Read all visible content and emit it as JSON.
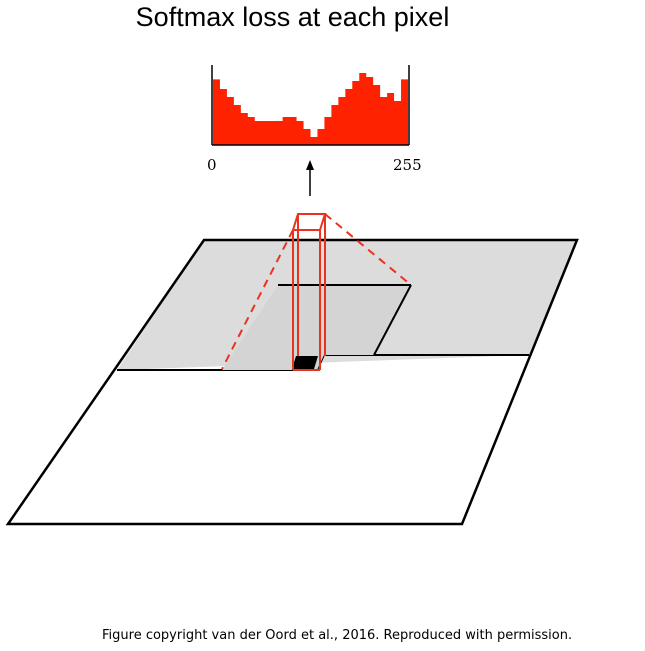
{
  "title": "Softmax loss at each pixel",
  "histogram": {
    "axis_min_label": "0",
    "axis_max_label": "255",
    "bar_color": "#ff2200",
    "relative_heights": [
      0.82,
      0.7,
      0.6,
      0.5,
      0.4,
      0.35,
      0.3,
      0.3,
      0.3,
      0.3,
      0.35,
      0.35,
      0.3,
      0.2,
      0.1,
      0.2,
      0.35,
      0.5,
      0.6,
      0.7,
      0.8,
      0.9,
      0.85,
      0.75,
      0.6,
      0.65,
      0.55,
      0.82
    ]
  },
  "colors": {
    "receptive_field": "#e8331e",
    "shaded_region": "#dcdcdc",
    "outline": "#000000",
    "current_pixel": "#000000"
  },
  "caption": "Figure copyright van der Oord et al., 2016. Reproduced with permission."
}
